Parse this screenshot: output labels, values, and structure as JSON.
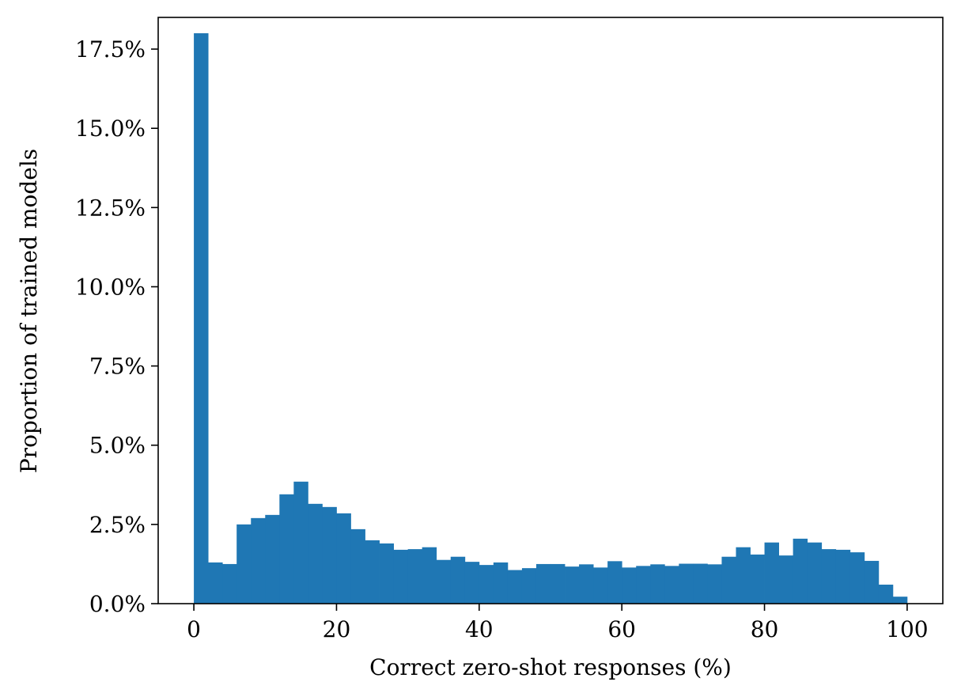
{
  "chart_data": {
    "type": "bar",
    "title": "",
    "xlabel": "Correct zero-shot responses (%)",
    "ylabel": "Proportion of trained models",
    "xlim": [
      -5,
      105
    ],
    "ylim": [
      0,
      18.5
    ],
    "bar_color": "#1f77b4",
    "grid": false,
    "legend": "none",
    "bin_width": 2,
    "bin_starts": [
      0,
      2,
      4,
      6,
      8,
      10,
      12,
      14,
      16,
      18,
      20,
      22,
      24,
      26,
      28,
      30,
      32,
      34,
      36,
      38,
      40,
      42,
      44,
      46,
      48,
      50,
      52,
      54,
      56,
      58,
      60,
      62,
      64,
      66,
      68,
      70,
      72,
      74,
      76,
      78,
      80,
      82,
      84,
      86,
      88,
      90,
      92,
      94,
      96,
      98
    ],
    "values": [
      18.0,
      1.3,
      1.25,
      2.5,
      2.7,
      2.8,
      3.45,
      3.85,
      3.15,
      3.05,
      2.85,
      2.35,
      2.0,
      1.9,
      1.7,
      1.72,
      1.78,
      1.38,
      1.48,
      1.32,
      1.22,
      1.3,
      1.06,
      1.12,
      1.25,
      1.25,
      1.17,
      1.24,
      1.14,
      1.34,
      1.14,
      1.19,
      1.24,
      1.19,
      1.26,
      1.26,
      1.24,
      1.48,
      1.78,
      1.55,
      1.93,
      1.52,
      2.05,
      1.93,
      1.72,
      1.7,
      1.62,
      1.35,
      0.6,
      0.22
    ],
    "x_ticks": [
      0,
      20,
      40,
      60,
      80,
      100
    ],
    "x_tick_labels": [
      "0",
      "20",
      "40",
      "60",
      "80",
      "100"
    ],
    "y_ticks": [
      0,
      2.5,
      5.0,
      7.5,
      10.0,
      12.5,
      15.0,
      17.5
    ],
    "y_tick_labels": [
      "0.0%",
      "2.5%",
      "5.0%",
      "7.5%",
      "10.0%",
      "12.5%",
      "15.0%",
      "17.5%"
    ]
  }
}
